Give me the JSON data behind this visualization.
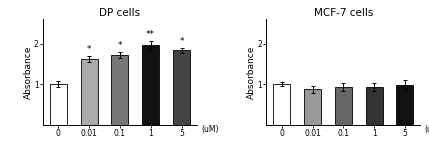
{
  "dp_title": "DP cells",
  "mcf_title": "MCF-7 cells",
  "xlabel": "(uM)",
  "ylabel": "Absorbance",
  "categories": [
    "0",
    "0.01",
    "0.1",
    "1",
    "5"
  ],
  "dp_values": [
    1.0,
    1.62,
    1.72,
    1.97,
    1.83
  ],
  "dp_errors": [
    0.07,
    0.07,
    0.07,
    0.1,
    0.07
  ],
  "dp_colors": [
    "#ffffff",
    "#aaaaaa",
    "#777777",
    "#111111",
    "#444444"
  ],
  "dp_annotations": [
    "",
    "*",
    "*",
    "**",
    "*"
  ],
  "mcf_values": [
    1.0,
    0.87,
    0.92,
    0.93,
    0.99
  ],
  "mcf_errors": [
    0.05,
    0.09,
    0.1,
    0.1,
    0.12
  ],
  "mcf_colors": [
    "#ffffff",
    "#999999",
    "#666666",
    "#333333",
    "#111111"
  ],
  "mcf_annotations": [
    "",
    "",
    "",
    "",
    ""
  ],
  "ylim": [
    0,
    2.6
  ],
  "yticks": [
    1,
    2
  ],
  "bar_width": 0.55,
  "edgecolor": "#000000",
  "annotation_fontsize": 6.5,
  "title_fontsize": 7.5,
  "label_fontsize": 6.5,
  "tick_fontsize": 5.5
}
